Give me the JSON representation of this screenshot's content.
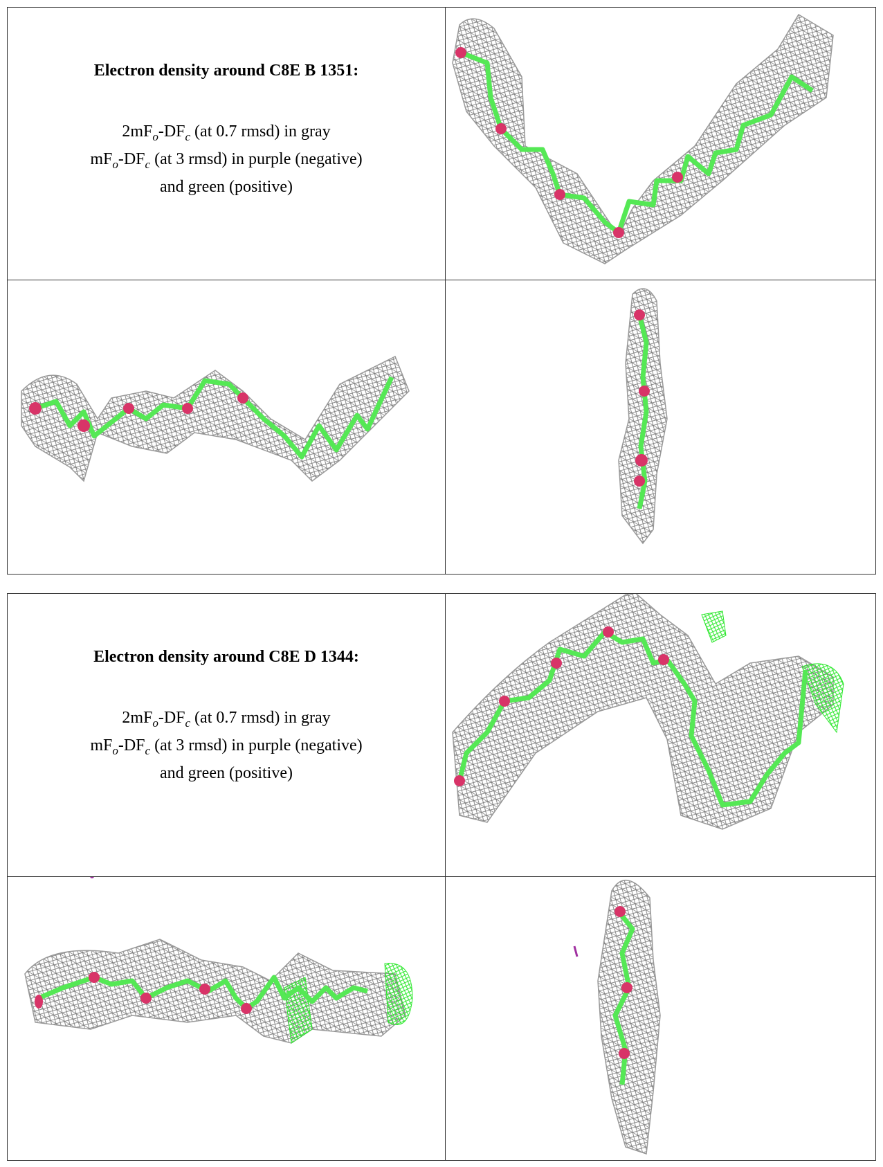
{
  "blocks": [
    {
      "title": "Electron density around C8E B 1351:",
      "lines": [
        [
          "2mF",
          "o",
          "-DF",
          "c",
          " (at 0.7 rmsd) in gray"
        ],
        [
          "mF",
          "o",
          "-DF",
          "c",
          " (at 3 rmsd) in purple (negative)"
        ],
        [
          "and green (positive)"
        ]
      ]
    },
    {
      "title": "Electron density around C8E D 1344:",
      "lines": [
        [
          "2mF",
          "o",
          "-DF",
          "c",
          " (at 0.7 rmsd) in gray"
        ],
        [
          "mF",
          "o",
          "-DF",
          "c",
          " (at 3 rmsd) in purple (negative)"
        ],
        [
          "and green (positive)"
        ]
      ]
    }
  ]
}
